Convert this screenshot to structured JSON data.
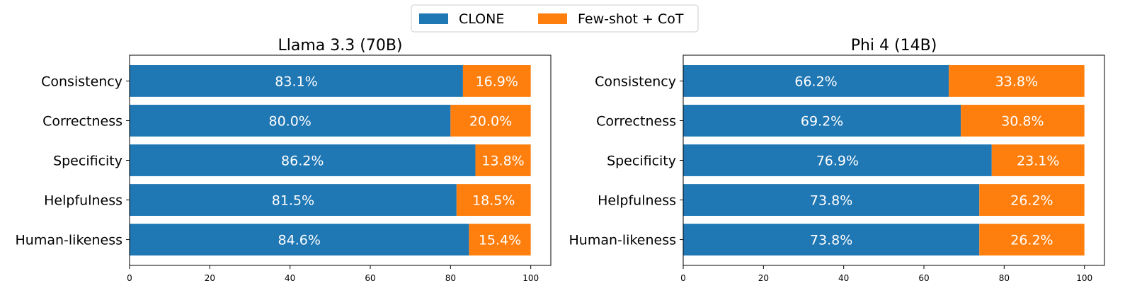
{
  "legend": {
    "items": [
      {
        "label": "CLONE",
        "color": "#1f77b4"
      },
      {
        "label": "Few-shot + CoT",
        "color": "#ff7f0e"
      }
    ],
    "placement": "top-center"
  },
  "chart_data": [
    {
      "type": "bar",
      "orientation": "horizontal",
      "stacked": true,
      "title": "Llama 3.3 (70B)",
      "categories": [
        "Consistency",
        "Correctness",
        "Specificity",
        "Helpfulness",
        "Human-likeness"
      ],
      "series": [
        {
          "name": "CLONE",
          "values": [
            83.1,
            80.0,
            86.2,
            81.5,
            84.6
          ],
          "labels": [
            "83.1%",
            "80.0%",
            "86.2%",
            "81.5%",
            "84.6%"
          ]
        },
        {
          "name": "Few-shot + CoT",
          "values": [
            16.9,
            20.0,
            13.8,
            18.5,
            15.4
          ],
          "labels": [
            "16.9%",
            "20.0%",
            "13.8%",
            "18.5%",
            "15.4%"
          ]
        }
      ],
      "xlim": [
        0,
        105
      ],
      "xticks": [
        0,
        20,
        40,
        60,
        80,
        100
      ],
      "grid": false
    },
    {
      "type": "bar",
      "orientation": "horizontal",
      "stacked": true,
      "title": "Phi 4 (14B)",
      "categories": [
        "Consistency",
        "Correctness",
        "Specificity",
        "Helpfulness",
        "Human-likeness"
      ],
      "series": [
        {
          "name": "CLONE",
          "values": [
            66.2,
            69.2,
            76.9,
            73.8,
            73.8
          ],
          "labels": [
            "66.2%",
            "69.2%",
            "76.9%",
            "73.8%",
            "73.8%"
          ]
        },
        {
          "name": "Few-shot + CoT",
          "values": [
            33.8,
            30.8,
            23.1,
            26.2,
            26.2
          ],
          "labels": [
            "33.8%",
            "30.8%",
            "23.1%",
            "26.2%",
            "26.2%"
          ]
        }
      ],
      "xlim": [
        0,
        105
      ],
      "xticks": [
        0,
        20,
        40,
        60,
        80,
        100
      ],
      "grid": false
    }
  ]
}
